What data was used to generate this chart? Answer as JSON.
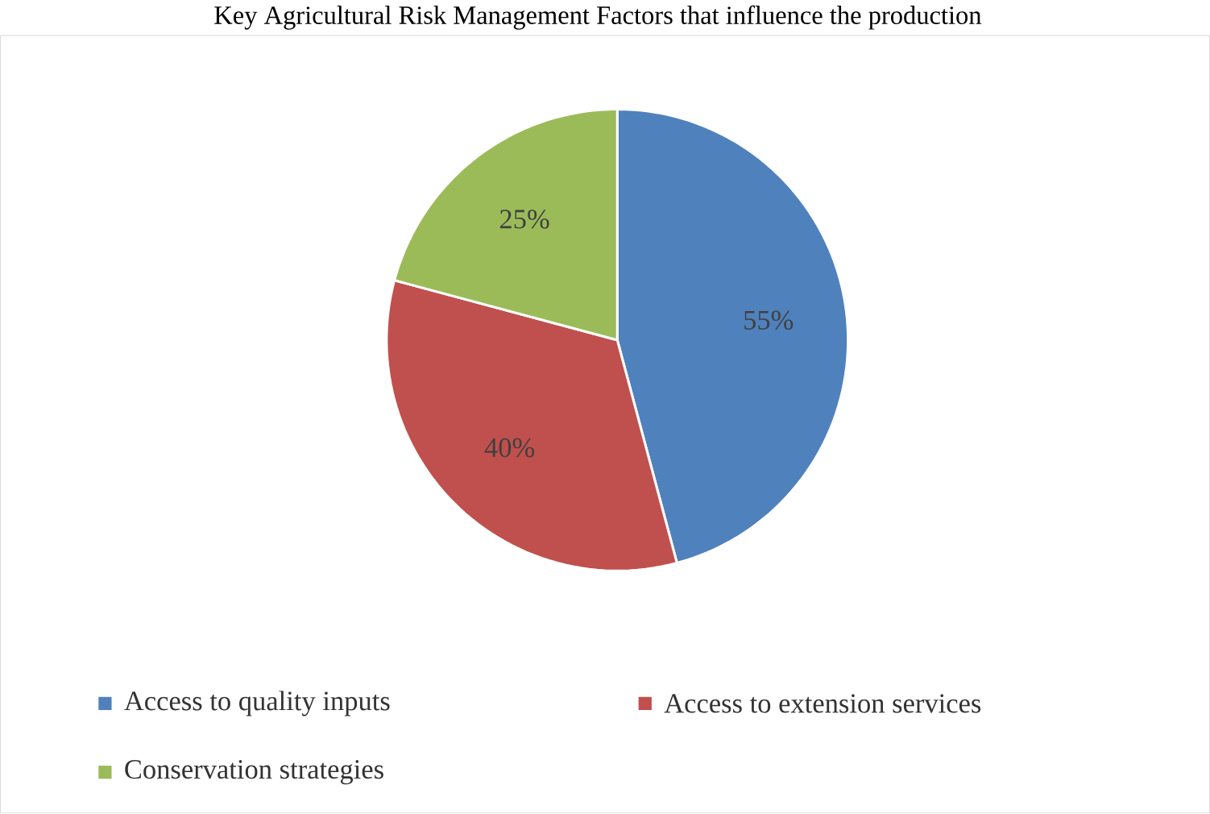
{
  "chart_data": {
    "type": "pie",
    "title": "Key Agricultural Risk Management Factors that influence the production",
    "categories": [
      "Access to quality inputs",
      "Access to extension services",
      "Conservation strategies"
    ],
    "values": [
      55,
      40,
      25
    ],
    "colors": [
      "#4f81bd",
      "#c0504d",
      "#9bbb59"
    ],
    "value_labels": [
      "55%",
      "40%",
      "25%"
    ],
    "legend": "bottom"
  }
}
